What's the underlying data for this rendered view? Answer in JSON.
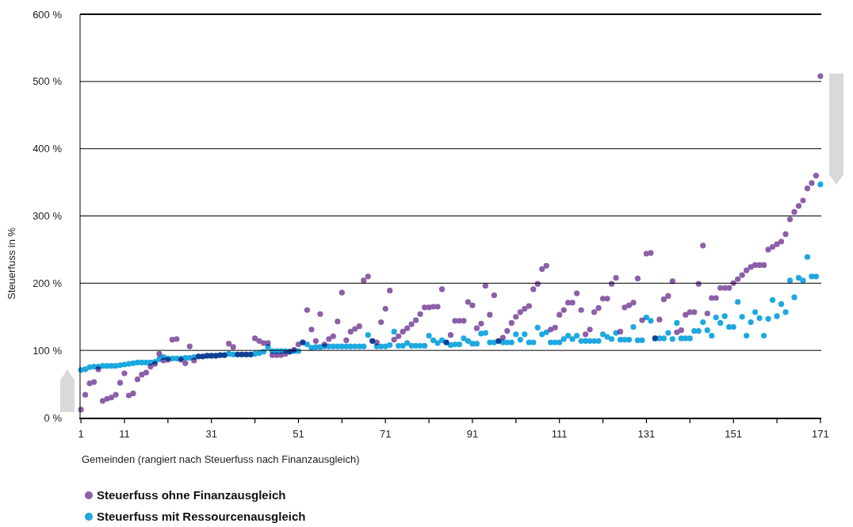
{
  "chart_data": {
    "type": "scatter",
    "xlabel": "Gemeinden (rangiert nach Steuerfuss nach Finanzausgleich)",
    "ylabel": "Steuerfuss in %",
    "xlim": [
      0.8,
      171.2
    ],
    "ylim": [
      0,
      600
    ],
    "xticks": [
      1,
      11,
      {
        "value": 21,
        "label": null
      },
      31,
      {
        "value": 41,
        "label": null
      },
      51,
      {
        "value": 61,
        "label": null
      },
      71,
      {
        "value": 81,
        "label": null
      },
      91,
      {
        "value": 101,
        "label": null
      },
      111,
      {
        "value": 121,
        "label": null
      },
      131,
      {
        "value": 141,
        "label": null
      },
      151,
      {
        "value": 161,
        "label": null
      },
      171
    ],
    "yticks": [
      {
        "value": 0,
        "label": "0 %"
      },
      {
        "value": 100,
        "label": "100 %"
      },
      {
        "value": 200,
        "label": "200 %"
      },
      {
        "value": 300,
        "label": "300 %"
      },
      {
        "value": 400,
        "label": "400 %"
      },
      {
        "value": 500,
        "label": "500 %"
      },
      {
        "value": 600,
        "label": "600 %"
      }
    ],
    "grid": "y",
    "legend": "bottom",
    "marker": "circle",
    "x": [
      1,
      2,
      3,
      4,
      5,
      6,
      7,
      8,
      9,
      10,
      11,
      12,
      13,
      14,
      15,
      16,
      17,
      18,
      19,
      20,
      21,
      22,
      23,
      24,
      25,
      26,
      27,
      28,
      29,
      30,
      31,
      32,
      33,
      34,
      35,
      36,
      37,
      38,
      39,
      40,
      41,
      42,
      43,
      44,
      45,
      46,
      47,
      48,
      49,
      50,
      51,
      52,
      53,
      54,
      55,
      56,
      57,
      58,
      59,
      60,
      61,
      62,
      63,
      64,
      65,
      66,
      67,
      68,
      69,
      70,
      71,
      72,
      73,
      74,
      75,
      76,
      77,
      78,
      79,
      80,
      81,
      82,
      83,
      84,
      85,
      86,
      87,
      88,
      89,
      90,
      91,
      92,
      93,
      94,
      95,
      96,
      97,
      98,
      99,
      100,
      101,
      102,
      103,
      104,
      105,
      106,
      107,
      108,
      109,
      110,
      111,
      112,
      113,
      114,
      115,
      116,
      117,
      118,
      119,
      120,
      121,
      122,
      123,
      124,
      125,
      126,
      127,
      128,
      129,
      130,
      131,
      132,
      133,
      134,
      135,
      136,
      137,
      138,
      139,
      140,
      141,
      142,
      143,
      144,
      145,
      146,
      147,
      148,
      149,
      150,
      151,
      152,
      153,
      154,
      155,
      156,
      157,
      158,
      159,
      160,
      161,
      162,
      163,
      164,
      165,
      166,
      167,
      168,
      169,
      170,
      171
    ],
    "series": [
      {
        "name": "Steuerfuss ohne Finanzausgleich",
        "color": "#8c5fa8",
        "values": [
          12,
          34,
          51,
          53,
          72,
          25,
          28,
          30,
          34,
          52,
          66,
          33,
          36,
          57,
          64,
          67,
          76,
          80,
          95,
          85,
          86,
          116,
          117,
          86,
          81,
          106,
          85,
          91,
          91,
          92,
          92,
          92,
          93,
          93,
          110,
          105,
          94,
          94,
          94,
          94,
          118,
          114,
          111,
          111,
          93,
          93,
          93,
          95,
          98,
          101,
          109,
          112,
          160,
          131,
          114,
          154,
          109,
          117,
          121,
          143,
          186,
          115,
          128,
          132,
          136,
          204,
          210,
          114,
          112,
          142,
          162,
          189,
          116,
          121,
          128,
          133,
          139,
          145,
          154,
          164,
          164,
          165,
          165,
          191,
          112,
          123,
          144,
          144,
          144,
          172,
          167,
          133,
          140,
          196,
          153,
          182,
          114,
          119,
          129,
          141,
          150,
          157,
          162,
          166,
          191,
          199,
          221,
          226,
          131,
          134,
          153,
          160,
          171,
          171,
          185,
          160,
          124,
          131,
          157,
          163,
          177,
          177,
          199,
          208,
          128,
          164,
          167,
          171,
          207,
          145,
          244,
          245,
          118,
          146,
          176,
          181,
          203,
          127,
          130,
          153,
          157,
          157,
          199,
          256,
          155,
          178,
          178,
          193,
          193,
          193,
          200,
          206,
          212,
          219,
          224,
          227,
          227,
          227,
          250,
          254,
          258,
          262,
          273,
          295,
          306,
          315,
          323,
          341,
          349,
          360,
          508
        ]
      },
      {
        "name": "Steuerfuss mit Ressourcenausgleich",
        "color": "#1ea8e0",
        "values": [
          71,
          72,
          75,
          76,
          76,
          77,
          77,
          77,
          77,
          78,
          79,
          80,
          81,
          82,
          82,
          82,
          82,
          83,
          87,
          90,
          88,
          88,
          88,
          88,
          89,
          89,
          90,
          91,
          91,
          92,
          92,
          92,
          93,
          93,
          95,
          94,
          94,
          94,
          94,
          94,
          95,
          96,
          98,
          105,
          99,
          99,
          99,
          99,
          98,
          99,
          99,
          112,
          109,
          104,
          105,
          105,
          106,
          106,
          106,
          106,
          106,
          106,
          106,
          106,
          106,
          106,
          123,
          114,
          106,
          106,
          106,
          108,
          128,
          107,
          107,
          111,
          107,
          107,
          107,
          107,
          122,
          115,
          111,
          115,
          112,
          108,
          109,
          109,
          118,
          114,
          110,
          110,
          125,
          126,
          112,
          112,
          114,
          112,
          112,
          112,
          124,
          116,
          124,
          112,
          112,
          134,
          124,
          127,
          112,
          112,
          112,
          117,
          122,
          117,
          122,
          114,
          114,
          114,
          114,
          114,
          124,
          120,
          117,
          126,
          116,
          116,
          116,
          135,
          115,
          115,
          149,
          144,
          118,
          118,
          118,
          126,
          117,
          141,
          118,
          118,
          118,
          129,
          129,
          142,
          130,
          122,
          149,
          141,
          151,
          135,
          135,
          172,
          150,
          122,
          142,
          157,
          148,
          122,
          147,
          175,
          151,
          169,
          157,
          204,
          179,
          208,
          204,
          239,
          210,
          210,
          347
        ]
      }
    ]
  }
}
